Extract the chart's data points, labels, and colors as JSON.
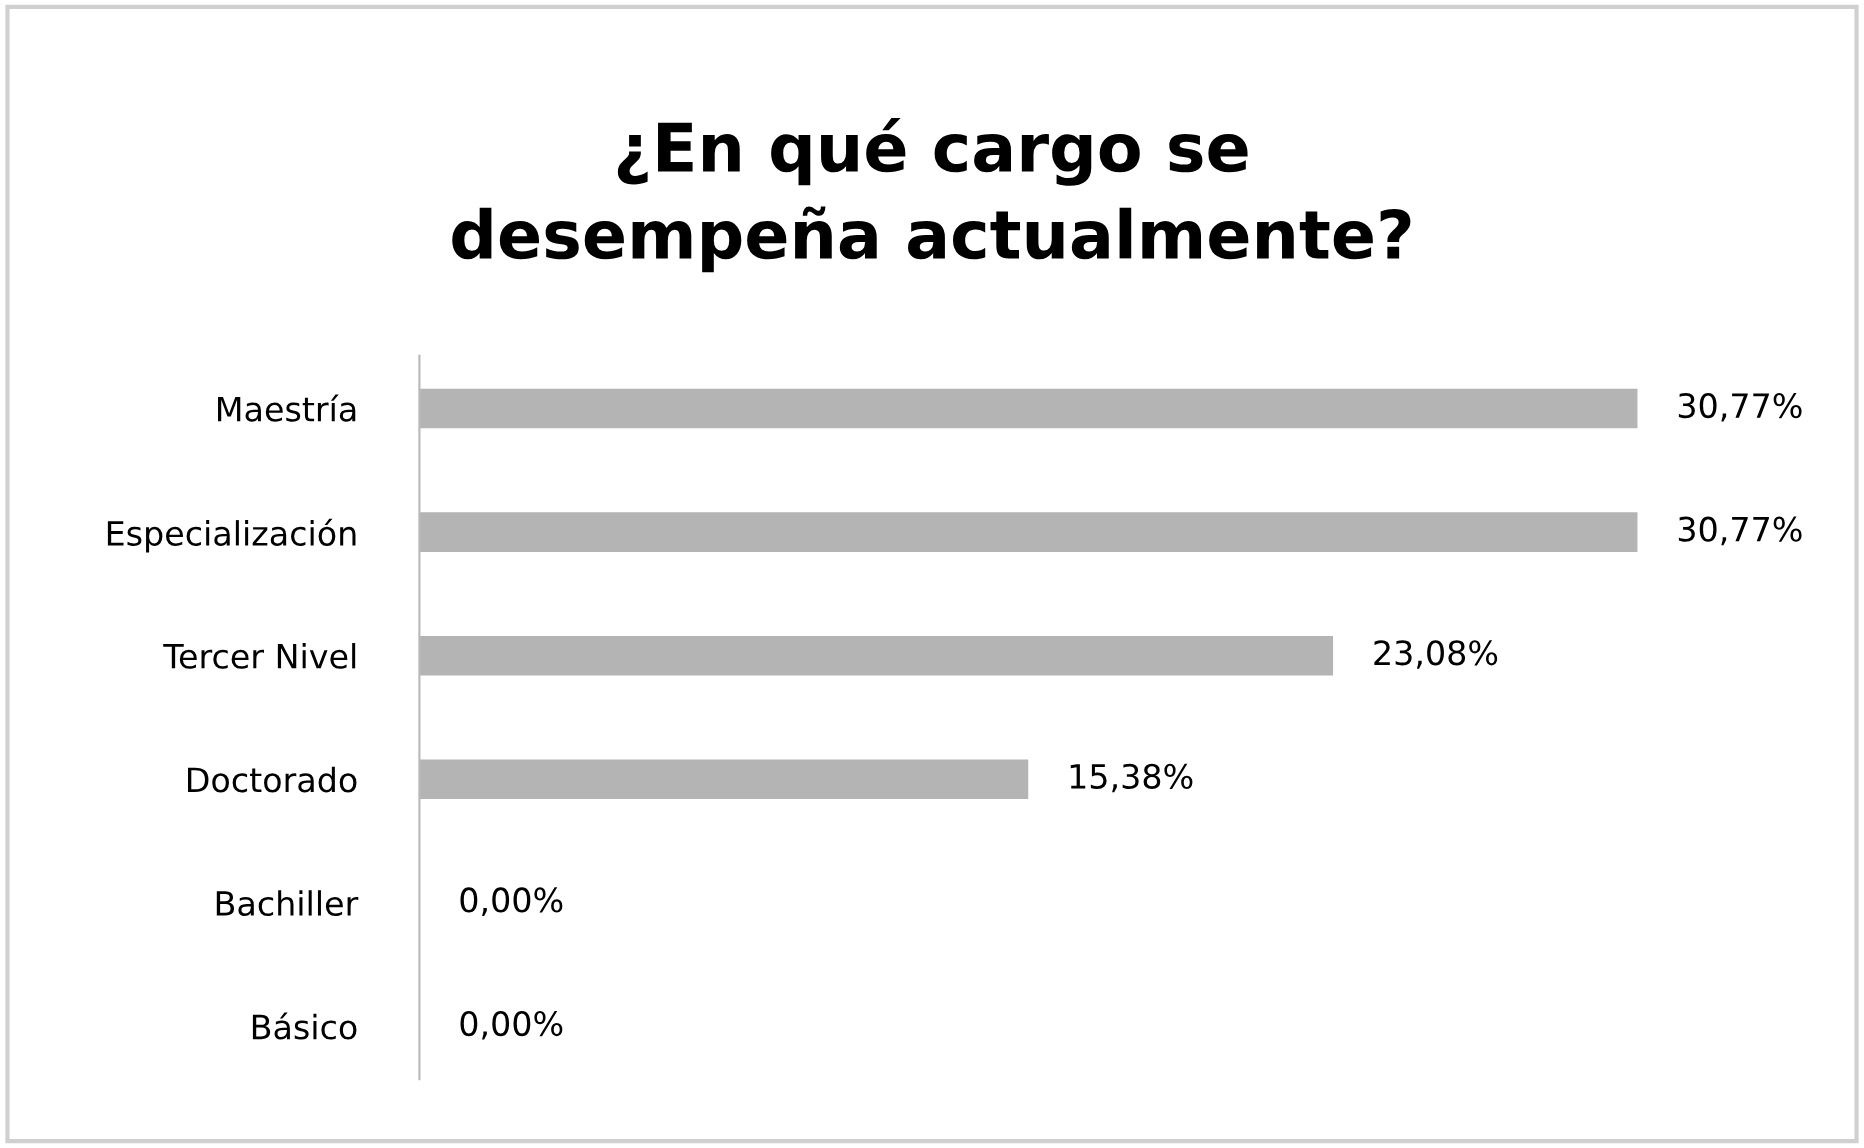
{
  "chart_data": {
    "type": "bar",
    "orientation": "horizontal",
    "title": "¿En qué cargo se desempeña actualmente?",
    "categories": [
      "Maestría",
      "Especialización",
      "Tercer Nivel",
      "Doctorado",
      "Bachiller",
      "Básico"
    ],
    "values": [
      30.77,
      30.77,
      23.08,
      15.38,
      0,
      0
    ],
    "value_labels": [
      "30,77%",
      "30,77%",
      "23,08%",
      "15,38%",
      "0,00%",
      "0,00%"
    ],
    "color": "#b4b4b4",
    "grid": false,
    "legend": false
  }
}
